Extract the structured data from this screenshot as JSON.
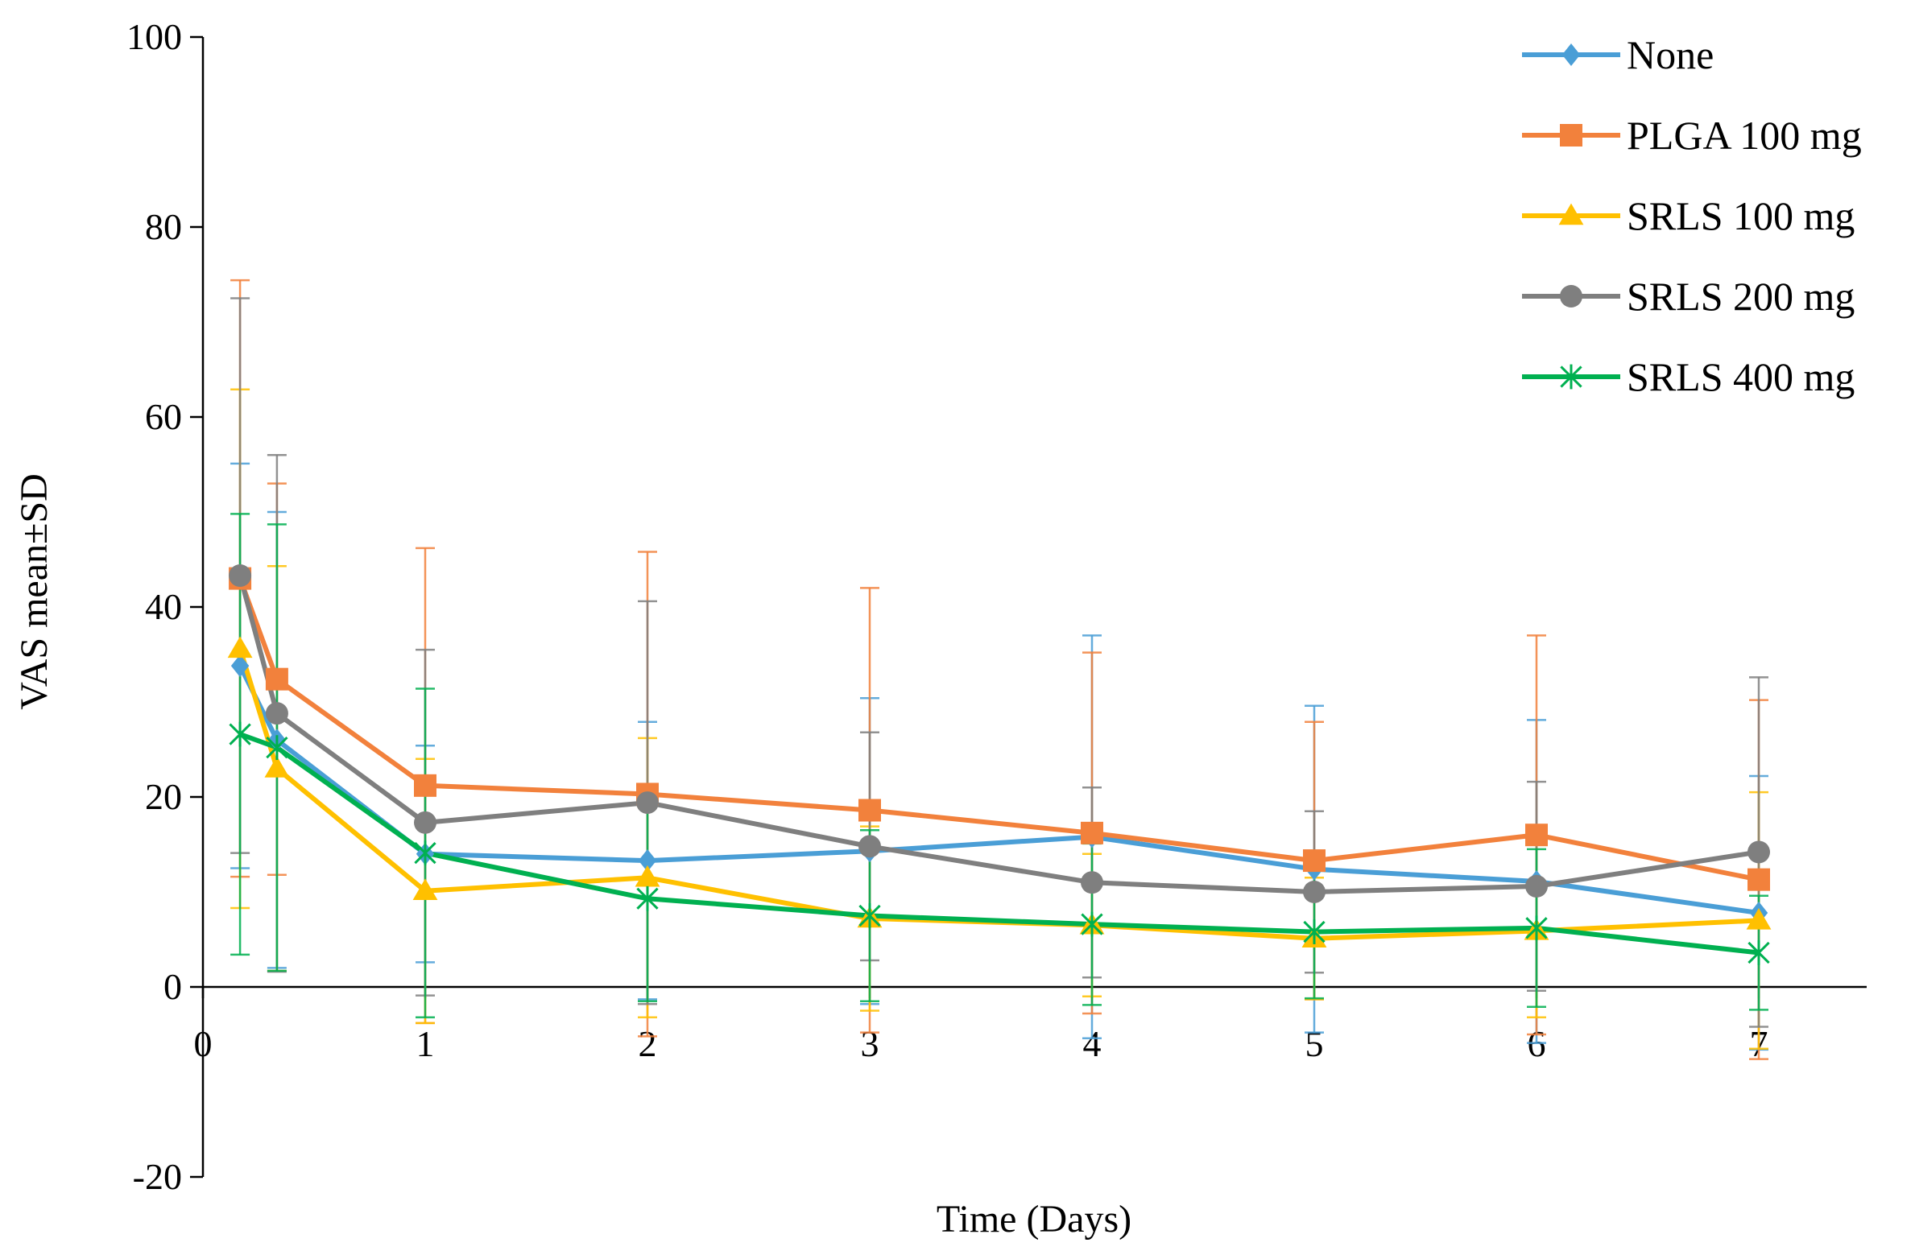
{
  "chart_data": {
    "type": "line",
    "xlabel": "Time (Days)",
    "ylabel": "VAS  mean±SD",
    "xlim": [
      0,
      7.5
    ],
    "ylim": [
      -20,
      100
    ],
    "x_ticks": [
      "0",
      "1",
      "2",
      "3",
      "4",
      "5",
      "6",
      "7"
    ],
    "y_ticks": [
      "-20",
      "0",
      "20",
      "40",
      "60",
      "80",
      "100"
    ],
    "legend_position": "top-right",
    "x": [
      0.167,
      0.333,
      1,
      2,
      3,
      4,
      5,
      6,
      7
    ],
    "series": [
      {
        "name": "None",
        "color": "#4A9ED6",
        "marker": "diamond",
        "values": [
          33.8,
          26.0,
          14.0,
          13.3,
          14.3,
          15.8,
          12.4,
          11.1,
          7.8
        ],
        "sd": [
          21.3,
          24.0,
          11.4,
          14.6,
          16.1,
          21.2,
          17.2,
          17.0,
          14.4
        ]
      },
      {
        "name": "PLGA 100 mg",
        "color": "#F2813C",
        "marker": "square",
        "values": [
          43.0,
          32.4,
          21.2,
          20.3,
          18.6,
          16.2,
          13.3,
          16.0,
          11.3
        ],
        "sd": [
          31.4,
          20.6,
          25.0,
          25.5,
          23.4,
          19.0,
          14.6,
          21.0,
          18.9
        ]
      },
      {
        "name": "SRLS 100 mg",
        "color": "#FFC000",
        "marker": "triangle",
        "values": [
          35.6,
          23.0,
          10.1,
          11.5,
          7.2,
          6.5,
          5.1,
          5.9,
          7.0
        ],
        "sd": [
          27.3,
          21.3,
          13.9,
          14.7,
          9.7,
          7.5,
          6.4,
          9.1,
          13.5
        ]
      },
      {
        "name": "SRLS 200 mg",
        "color": "#7F7F7F",
        "marker": "circle",
        "values": [
          43.3,
          28.8,
          17.3,
          19.4,
          14.8,
          11.0,
          10.0,
          10.6,
          14.2
        ],
        "sd": [
          29.2,
          27.2,
          18.2,
          21.2,
          12.0,
          10.0,
          8.5,
          11.0,
          18.4
        ]
      },
      {
        "name": "SRLS 400 mg",
        "color": "#00B050",
        "marker": "star",
        "values": [
          26.6,
          25.2,
          14.1,
          9.3,
          7.5,
          6.6,
          5.8,
          6.2,
          3.6
        ],
        "sd": [
          23.2,
          23.5,
          17.3,
          10.8,
          9.0,
          8.5,
          7.0,
          8.3,
          6.0
        ]
      }
    ]
  }
}
